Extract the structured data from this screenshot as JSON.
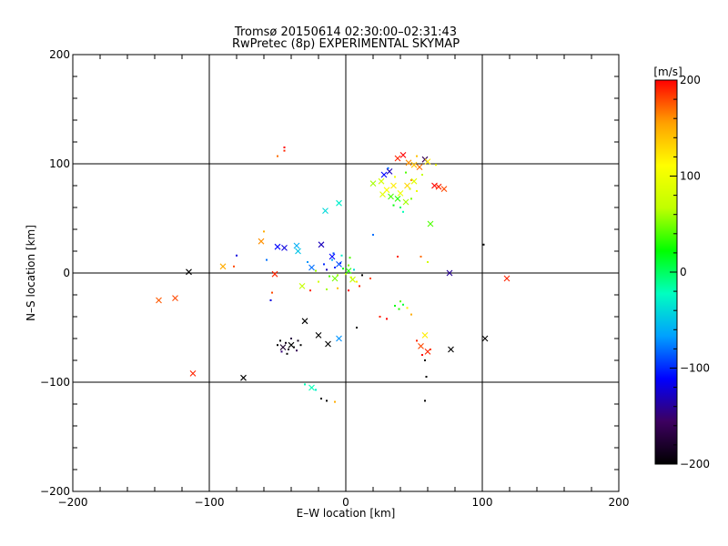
{
  "title": "Tromsø 20150614 02:30:00–02:31:43",
  "subtitle": "RwPretec (8p) EXPERIMENTAL SKYMAP",
  "chart_data": {
    "type": "scatter",
    "xlabel": "E–W location [km]",
    "ylabel": "N–S location [km]",
    "xlim": [
      -200,
      200
    ],
    "ylim": [
      -200,
      200
    ],
    "xticks": [
      -200,
      -100,
      0,
      100,
      200
    ],
    "yticks": [
      -200,
      -100,
      0,
      100,
      200
    ],
    "xtick_labels": [
      "−200",
      "−100",
      "0",
      "100",
      "200"
    ],
    "ytick_labels": [
      "−200",
      "−100",
      "0",
      "100",
      "200"
    ],
    "grid": true,
    "colorbar": {
      "label": "[m/s]",
      "range": [
        -200,
        200
      ],
      "ticks": [
        -200,
        -100,
        0,
        100,
        200
      ],
      "tick_labels": [
        "−200",
        "−100",
        "0",
        "100",
        "200"
      ],
      "colormap": [
        "#000000",
        "#3d0060",
        "#0000ff",
        "#00a0ff",
        "#00ffc0",
        "#00ff00",
        "#c0ff00",
        "#ffff00",
        "#ffa000",
        "#ff0000"
      ]
    },
    "markers": {
      "cross": [
        {
          "x": -137,
          "y": -25,
          "v": 175
        },
        {
          "x": -125,
          "y": -23,
          "v": 180
        },
        {
          "x": -115,
          "y": 1,
          "v": -200
        },
        {
          "x": -112,
          "y": -92,
          "v": 190
        },
        {
          "x": -90,
          "y": 6,
          "v": 150
        },
        {
          "x": -75,
          "y": -96,
          "v": -200
        },
        {
          "x": -62,
          "y": 29,
          "v": 160
        },
        {
          "x": -52,
          "y": -1,
          "v": 190
        },
        {
          "x": -50,
          "y": 24,
          "v": -110
        },
        {
          "x": -45,
          "y": 23,
          "v": -120
        },
        {
          "x": -36,
          "y": 25,
          "v": -60
        },
        {
          "x": -35,
          "y": 20,
          "v": -50
        },
        {
          "x": -30,
          "y": -44,
          "v": -200
        },
        {
          "x": -20,
          "y": -57,
          "v": -200
        },
        {
          "x": -13,
          "y": -65,
          "v": -200
        },
        {
          "x": -5,
          "y": -60,
          "v": -70
        },
        {
          "x": -15,
          "y": 57,
          "v": -40
        },
        {
          "x": -5,
          "y": 64,
          "v": -30
        },
        {
          "x": -18,
          "y": 26,
          "v": -130
        },
        {
          "x": -10,
          "y": 15,
          "v": -110
        },
        {
          "x": -5,
          "y": 8,
          "v": -90
        },
        {
          "x": 2,
          "y": 2,
          "v": 30
        },
        {
          "x": -8,
          "y": -5,
          "v": 50
        },
        {
          "x": 5,
          "y": -6,
          "v": 70
        },
        {
          "x": -25,
          "y": 5,
          "v": -80
        },
        {
          "x": -32,
          "y": -12,
          "v": 70
        },
        {
          "x": 28,
          "y": 90,
          "v": -110
        },
        {
          "x": 32,
          "y": 93,
          "v": -130
        },
        {
          "x": 38,
          "y": 105,
          "v": 190
        },
        {
          "x": 42,
          "y": 108,
          "v": 200
        },
        {
          "x": 46,
          "y": 101,
          "v": 160
        },
        {
          "x": 50,
          "y": 99,
          "v": 140
        },
        {
          "x": 54,
          "y": 97,
          "v": 170
        },
        {
          "x": 58,
          "y": 104,
          "v": -160
        },
        {
          "x": 60,
          "y": 102,
          "v": 120
        },
        {
          "x": 65,
          "y": 80,
          "v": 200
        },
        {
          "x": 68,
          "y": 79,
          "v": 190
        },
        {
          "x": 72,
          "y": 77,
          "v": 180
        },
        {
          "x": 20,
          "y": 82,
          "v": 60
        },
        {
          "x": 26,
          "y": 84,
          "v": 80
        },
        {
          "x": 30,
          "y": 76,
          "v": 110
        },
        {
          "x": 35,
          "y": 80,
          "v": 120
        },
        {
          "x": 40,
          "y": 73,
          "v": 100
        },
        {
          "x": 45,
          "y": 80,
          "v": 130
        },
        {
          "x": 50,
          "y": 84,
          "v": 90
        },
        {
          "x": 33,
          "y": 70,
          "v": 40
        },
        {
          "x": 38,
          "y": 68,
          "v": 30
        },
        {
          "x": 44,
          "y": 65,
          "v": 60
        },
        {
          "x": 27,
          "y": 72,
          "v": 90
        },
        {
          "x": 62,
          "y": 45,
          "v": 40
        },
        {
          "x": 76,
          "y": 0,
          "v": -140
        },
        {
          "x": 77,
          "y": -70,
          "v": -200
        },
        {
          "x": 102,
          "y": -60,
          "v": -200
        },
        {
          "x": 118,
          "y": -5,
          "v": 190
        },
        {
          "x": 58,
          "y": -57,
          "v": 120
        },
        {
          "x": 55,
          "y": -67,
          "v": 180
        },
        {
          "x": 60,
          "y": -72,
          "v": 190
        },
        {
          "x": -40,
          "y": -66,
          "v": -200
        },
        {
          "x": -46,
          "y": -68,
          "v": -180
        },
        {
          "x": -25,
          "y": -105,
          "v": -20
        }
      ],
      "dot": [
        {
          "x": -45,
          "y": 115,
          "v": 200
        },
        {
          "x": -45,
          "y": 112,
          "v": 190
        },
        {
          "x": -50,
          "y": 107,
          "v": 170
        },
        {
          "x": -60,
          "y": 38,
          "v": 150
        },
        {
          "x": -80,
          "y": 16,
          "v": -120
        },
        {
          "x": -82,
          "y": 6,
          "v": 180
        },
        {
          "x": -58,
          "y": 12,
          "v": -80
        },
        {
          "x": -55,
          "y": -25,
          "v": -120
        },
        {
          "x": -54,
          "y": -18,
          "v": 180
        },
        {
          "x": -48,
          "y": -62,
          "v": -200
        },
        {
          "x": -44,
          "y": -64,
          "v": -190
        },
        {
          "x": -42,
          "y": -70,
          "v": -180
        },
        {
          "x": -38,
          "y": -68,
          "v": -200
        },
        {
          "x": -36,
          "y": -71,
          "v": -160
        },
        {
          "x": -33,
          "y": -66,
          "v": -200
        },
        {
          "x": -47,
          "y": -72,
          "v": -150
        },
        {
          "x": -50,
          "y": -66,
          "v": -200
        },
        {
          "x": -35,
          "y": -62,
          "v": -190
        },
        {
          "x": -40,
          "y": -60,
          "v": -170
        },
        {
          "x": -43,
          "y": -74,
          "v": -200
        },
        {
          "x": -30,
          "y": -102,
          "v": -20
        },
        {
          "x": -22,
          "y": -107,
          "v": -30
        },
        {
          "x": -18,
          "y": -115,
          "v": -200
        },
        {
          "x": -14,
          "y": -117,
          "v": -200
        },
        {
          "x": -8,
          "y": -118,
          "v": 150
        },
        {
          "x": -28,
          "y": 10,
          "v": -70
        },
        {
          "x": -22,
          "y": 2,
          "v": 60
        },
        {
          "x": -20,
          "y": -8,
          "v": 80
        },
        {
          "x": -16,
          "y": 8,
          "v": -100
        },
        {
          "x": -14,
          "y": 3,
          "v": -130
        },
        {
          "x": -12,
          "y": -3,
          "v": 40
        },
        {
          "x": -10,
          "y": 12,
          "v": -60
        },
        {
          "x": -8,
          "y": 5,
          "v": -100
        },
        {
          "x": -6,
          "y": -2,
          "v": 60
        },
        {
          "x": -4,
          "y": 9,
          "v": -110
        },
        {
          "x": -2,
          "y": 4,
          "v": 20
        },
        {
          "x": 0,
          "y": -1,
          "v": 80
        },
        {
          "x": 2,
          "y": 7,
          "v": 50
        },
        {
          "x": 4,
          "y": -4,
          "v": 100
        },
        {
          "x": 6,
          "y": 3,
          "v": -40
        },
        {
          "x": 8,
          "y": -8,
          "v": 120
        },
        {
          "x": -9,
          "y": 18,
          "v": -90
        },
        {
          "x": -3,
          "y": 16,
          "v": -30
        },
        {
          "x": 3,
          "y": 14,
          "v": 40
        },
        {
          "x": 10,
          "y": -12,
          "v": 190
        },
        {
          "x": 12,
          "y": -2,
          "v": -200
        },
        {
          "x": 18,
          "y": -5,
          "v": 180
        },
        {
          "x": -14,
          "y": -15,
          "v": 60
        },
        {
          "x": -6,
          "y": -14,
          "v": 140
        },
        {
          "x": 2,
          "y": -16,
          "v": 200
        },
        {
          "x": -26,
          "y": -16,
          "v": 190
        },
        {
          "x": 8,
          "y": -50,
          "v": -200
        },
        {
          "x": 20,
          "y": 35,
          "v": -80
        },
        {
          "x": 38,
          "y": 15,
          "v": 190
        },
        {
          "x": 55,
          "y": 15,
          "v": 170
        },
        {
          "x": 60,
          "y": 10,
          "v": 80
        },
        {
          "x": 36,
          "y": -30,
          "v": 20
        },
        {
          "x": 39,
          "y": -33,
          "v": 30
        },
        {
          "x": 42,
          "y": -29,
          "v": 10
        },
        {
          "x": 40,
          "y": -26,
          "v": 40
        },
        {
          "x": 45,
          "y": -32,
          "v": 120
        },
        {
          "x": 48,
          "y": -38,
          "v": 150
        },
        {
          "x": 25,
          "y": -40,
          "v": 190
        },
        {
          "x": 30,
          "y": -42,
          "v": 200
        },
        {
          "x": 52,
          "y": -62,
          "v": 190
        },
        {
          "x": 56,
          "y": -75,
          "v": 200
        },
        {
          "x": 58,
          "y": -80,
          "v": -200
        },
        {
          "x": 59,
          "y": -95,
          "v": -200
        },
        {
          "x": 58,
          "y": -117,
          "v": -200
        },
        {
          "x": 62,
          "y": -70,
          "v": 180
        },
        {
          "x": 101,
          "y": 26,
          "v": -200
        },
        {
          "x": 40,
          "y": 60,
          "v": 0
        },
        {
          "x": 42,
          "y": 56,
          "v": -20
        },
        {
          "x": 35,
          "y": 62,
          "v": 20
        },
        {
          "x": 48,
          "y": 68,
          "v": 50
        },
        {
          "x": 52,
          "y": 75,
          "v": 100
        },
        {
          "x": 56,
          "y": 90,
          "v": 70
        },
        {
          "x": 44,
          "y": 92,
          "v": 40
        },
        {
          "x": 36,
          "y": 88,
          "v": 100
        },
        {
          "x": 31,
          "y": 96,
          "v": -80
        },
        {
          "x": 52,
          "y": 107,
          "v": 140
        },
        {
          "x": 66,
          "y": 99,
          "v": 100
        },
        {
          "x": 48,
          "y": 85,
          "v": 160
        },
        {
          "x": 47,
          "y": 77,
          "v": 80
        }
      ]
    }
  }
}
